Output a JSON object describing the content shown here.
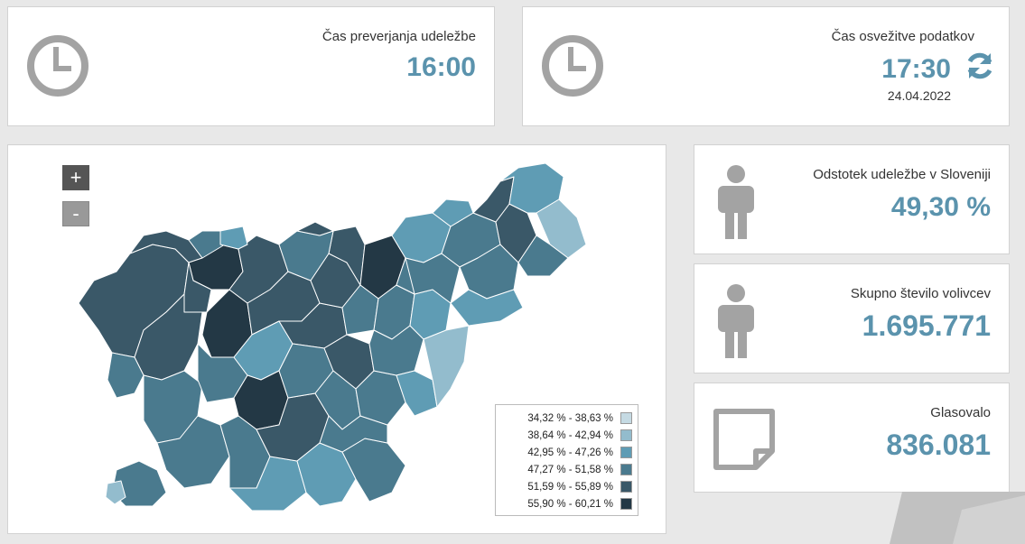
{
  "turnout_check": {
    "label": "Čas preverjanja udeležbe",
    "time": "16:00"
  },
  "data_refresh": {
    "label": "Čas osvežitve podatkov",
    "time": "17:30",
    "date": "24.04.2022"
  },
  "turnout_percent": {
    "label": "Odstotek udeležbe v Sloveniji",
    "value": "49,30 %"
  },
  "total_voters": {
    "label": "Skupno število volivcev",
    "value": "1.695.771"
  },
  "voted": {
    "label": "Glasovalo",
    "value": "836.081"
  },
  "map": {
    "zoom_in_label": "+",
    "zoom_out_label": "-",
    "legend": [
      {
        "label": "34,32 % - 38,63 %",
        "color": "#c5dae3"
      },
      {
        "label": "38,64 % - 42,94 %",
        "color": "#93bccd"
      },
      {
        "label": "42,95 % - 47,26 %",
        "color": "#5f9cb4"
      },
      {
        "label": "47,27 % - 51,58 %",
        "color": "#4a7a8e"
      },
      {
        "label": "51,59 % - 55,89 %",
        "color": "#3a5868"
      },
      {
        "label": "55,90 % - 60,21 %",
        "color": "#233845"
      }
    ]
  }
}
